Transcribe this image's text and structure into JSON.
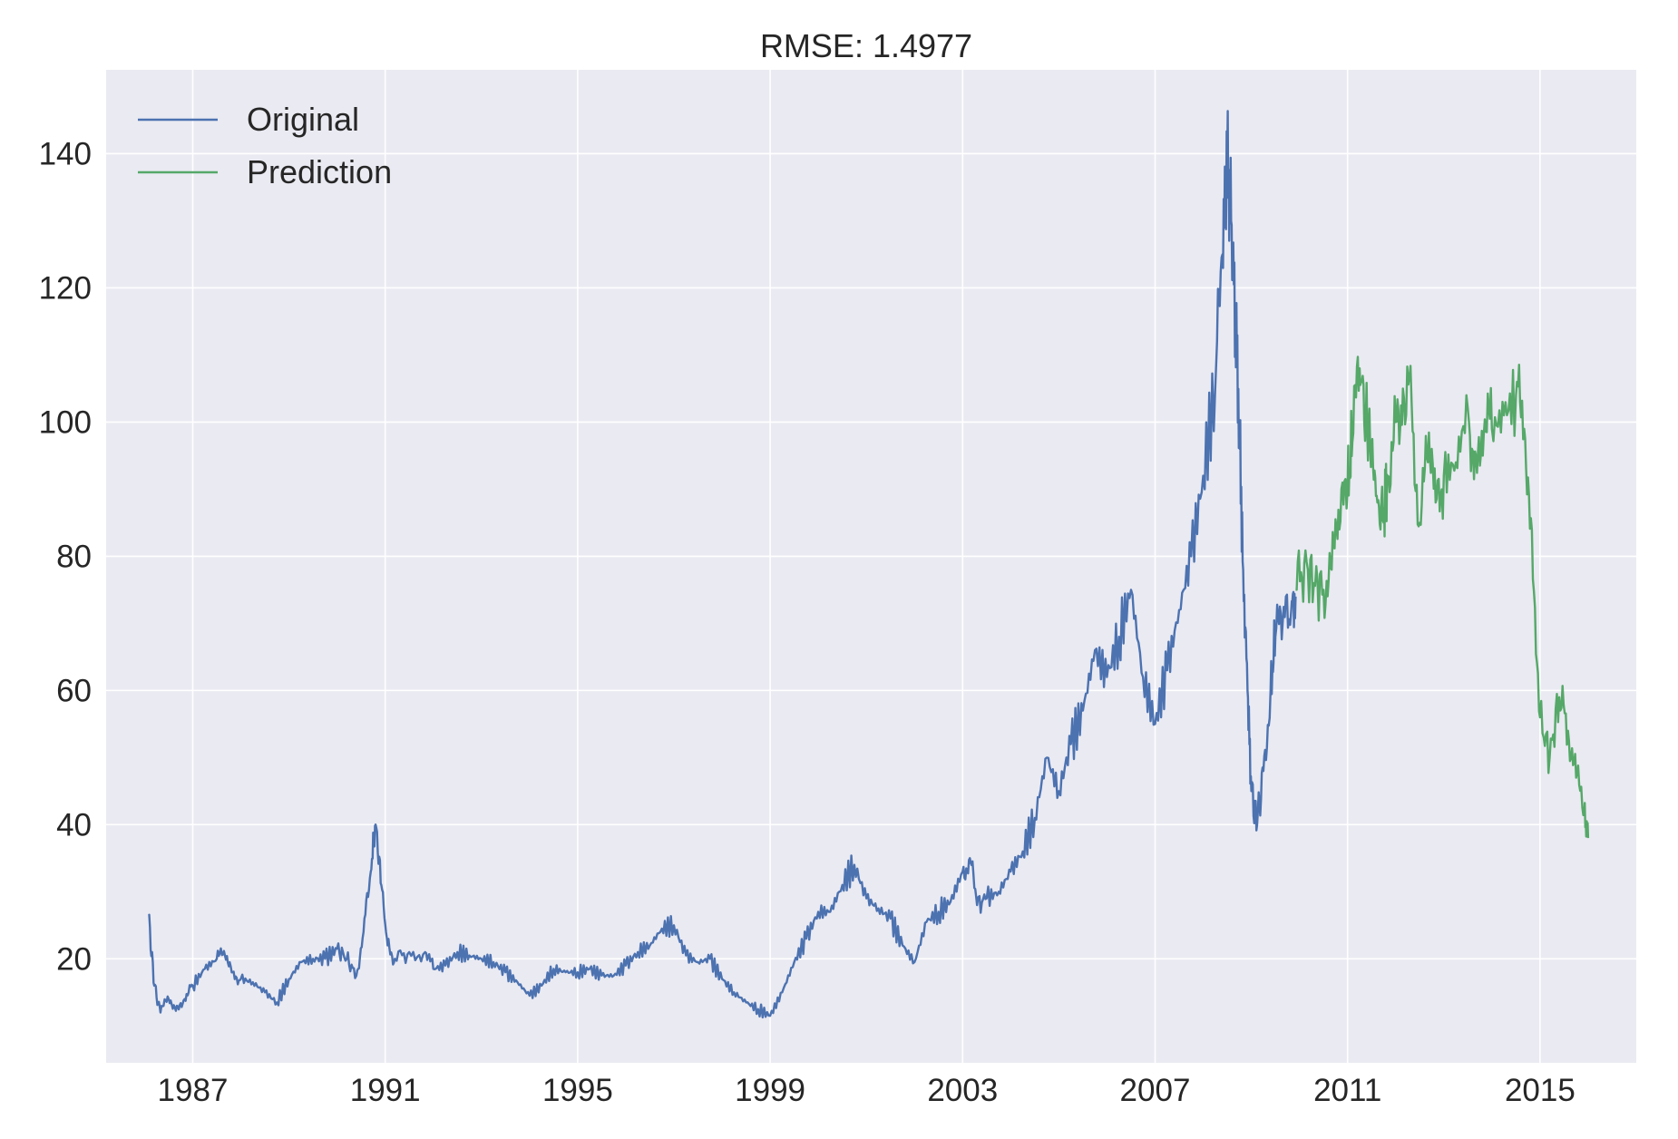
{
  "chart_data": {
    "type": "line",
    "title": "RMSE: 1.4977",
    "xlabel": "",
    "ylabel": "",
    "xlim": [
      1985.2,
      2017.0
    ],
    "ylim": [
      4.5,
      152.5
    ],
    "x_ticks": [
      1987,
      1991,
      1995,
      1999,
      2003,
      2007,
      2011,
      2015
    ],
    "x_tick_labels": [
      "1987",
      "1991",
      "1995",
      "1999",
      "2003",
      "2007",
      "2011",
      "2015"
    ],
    "y_ticks": [
      20,
      40,
      60,
      80,
      100,
      120,
      140
    ],
    "y_tick_labels": [
      "20",
      "40",
      "60",
      "80",
      "100",
      "120",
      "140"
    ],
    "grid": true,
    "legend": "top-left",
    "background": "#eaeaf2",
    "series": [
      {
        "name": "Original",
        "color": "#4c72b0",
        "points": [
          [
            1986.08,
            26.5
          ],
          [
            1986.2,
            16
          ],
          [
            1986.33,
            12
          ],
          [
            1986.5,
            14
          ],
          [
            1986.67,
            13
          ],
          [
            1986.83,
            14
          ],
          [
            1987.0,
            16
          ],
          [
            1987.25,
            18.5
          ],
          [
            1987.5,
            20
          ],
          [
            1987.67,
            20.5
          ],
          [
            1987.83,
            18
          ],
          [
            1988.0,
            17
          ],
          [
            1988.25,
            16.5
          ],
          [
            1988.5,
            15
          ],
          [
            1988.75,
            13.5
          ],
          [
            1989.0,
            17
          ],
          [
            1989.25,
            19.5
          ],
          [
            1989.5,
            20
          ],
          [
            1989.75,
            20
          ],
          [
            1990.0,
            21.5
          ],
          [
            1990.2,
            20
          ],
          [
            1990.4,
            17.5
          ],
          [
            1990.55,
            24
          ],
          [
            1990.7,
            33
          ],
          [
            1990.8,
            40
          ],
          [
            1990.92,
            31
          ],
          [
            1991.05,
            22
          ],
          [
            1991.2,
            20
          ],
          [
            1991.5,
            21
          ],
          [
            1991.83,
            21
          ],
          [
            1992.0,
            18.5
          ],
          [
            1992.25,
            19
          ],
          [
            1992.5,
            21
          ],
          [
            1992.75,
            20.5
          ],
          [
            1993.0,
            20
          ],
          [
            1993.25,
            19.5
          ],
          [
            1993.5,
            18
          ],
          [
            1993.75,
            16.5
          ],
          [
            1994.0,
            14.5
          ],
          [
            1994.25,
            16
          ],
          [
            1994.5,
            18.5
          ],
          [
            1994.75,
            18
          ],
          [
            1995.0,
            18
          ],
          [
            1995.25,
            18.5
          ],
          [
            1995.5,
            17.5
          ],
          [
            1995.75,
            17.5
          ],
          [
            1996.0,
            19
          ],
          [
            1996.25,
            21
          ],
          [
            1996.5,
            22
          ],
          [
            1996.75,
            24.5
          ],
          [
            1997.0,
            25
          ],
          [
            1997.25,
            20.5
          ],
          [
            1997.5,
            19.5
          ],
          [
            1997.75,
            20
          ],
          [
            1998.0,
            17
          ],
          [
            1998.25,
            15
          ],
          [
            1998.5,
            13.5
          ],
          [
            1998.75,
            12.5
          ],
          [
            1999.0,
            11.5
          ],
          [
            1999.25,
            15
          ],
          [
            1999.5,
            19.5
          ],
          [
            1999.75,
            23
          ],
          [
            2000.0,
            27
          ],
          [
            2000.25,
            27
          ],
          [
            2000.5,
            31
          ],
          [
            2000.75,
            34
          ],
          [
            2001.0,
            29
          ],
          [
            2001.25,
            27.5
          ],
          [
            2001.5,
            26
          ],
          [
            2001.75,
            22
          ],
          [
            2002.0,
            19.5
          ],
          [
            2002.25,
            25.5
          ],
          [
            2002.5,
            27
          ],
          [
            2002.75,
            28.5
          ],
          [
            2003.0,
            33
          ],
          [
            2003.15,
            35
          ],
          [
            2003.3,
            28
          ],
          [
            2003.5,
            29
          ],
          [
            2003.75,
            30
          ],
          [
            2004.0,
            33
          ],
          [
            2004.25,
            36
          ],
          [
            2004.5,
            41
          ],
          [
            2004.75,
            50
          ],
          [
            2005.0,
            45
          ],
          [
            2005.25,
            52
          ],
          [
            2005.5,
            57
          ],
          [
            2005.75,
            66
          ],
          [
            2006.0,
            62
          ],
          [
            2006.25,
            68
          ],
          [
            2006.5,
            75
          ],
          [
            2006.75,
            62
          ],
          [
            2007.0,
            55
          ],
          [
            2007.25,
            63
          ],
          [
            2007.5,
            72
          ],
          [
            2007.75,
            80
          ],
          [
            2008.0,
            92
          ],
          [
            2008.25,
            105
          ],
          [
            2008.4,
            125
          ],
          [
            2008.5,
            140
          ],
          [
            2008.58,
            130
          ],
          [
            2008.67,
            115
          ],
          [
            2008.75,
            100
          ],
          [
            2008.83,
            78
          ],
          [
            2008.92,
            60
          ],
          [
            2009.0,
            45
          ],
          [
            2009.12,
            40
          ],
          [
            2009.25,
            48
          ],
          [
            2009.4,
            60
          ],
          [
            2009.5,
            68
          ],
          [
            2009.65,
            70
          ],
          [
            2009.83,
            72
          ],
          [
            2009.92,
            74
          ]
        ]
      },
      {
        "name": "Prediction",
        "color": "#55a868",
        "points": [
          [
            2009.92,
            75
          ],
          [
            2010.1,
            79
          ],
          [
            2010.3,
            76
          ],
          [
            2010.5,
            75
          ],
          [
            2010.67,
            78
          ],
          [
            2010.83,
            84
          ],
          [
            2011.0,
            90
          ],
          [
            2011.1,
            97
          ],
          [
            2011.25,
            108
          ],
          [
            2011.38,
            101
          ],
          [
            2011.5,
            96
          ],
          [
            2011.62,
            88
          ],
          [
            2011.75,
            85
          ],
          [
            2011.83,
            92
          ],
          [
            2012.0,
            100
          ],
          [
            2012.15,
            105
          ],
          [
            2012.33,
            103
          ],
          [
            2012.5,
            85
          ],
          [
            2012.67,
            94
          ],
          [
            2012.83,
            88
          ],
          [
            2013.0,
            92
          ],
          [
            2013.25,
            94
          ],
          [
            2013.5,
            102
          ],
          [
            2013.67,
            95
          ],
          [
            2013.83,
            98
          ],
          [
            2014.0,
            99
          ],
          [
            2014.25,
            101
          ],
          [
            2014.5,
            104
          ],
          [
            2014.67,
            99
          ],
          [
            2014.83,
            84
          ],
          [
            2015.0,
            56
          ],
          [
            2015.2,
            50
          ],
          [
            2015.4,
            59
          ],
          [
            2015.58,
            54
          ],
          [
            2015.75,
            47
          ],
          [
            2015.92,
            42
          ],
          [
            2016.0,
            38
          ]
        ]
      }
    ]
  }
}
